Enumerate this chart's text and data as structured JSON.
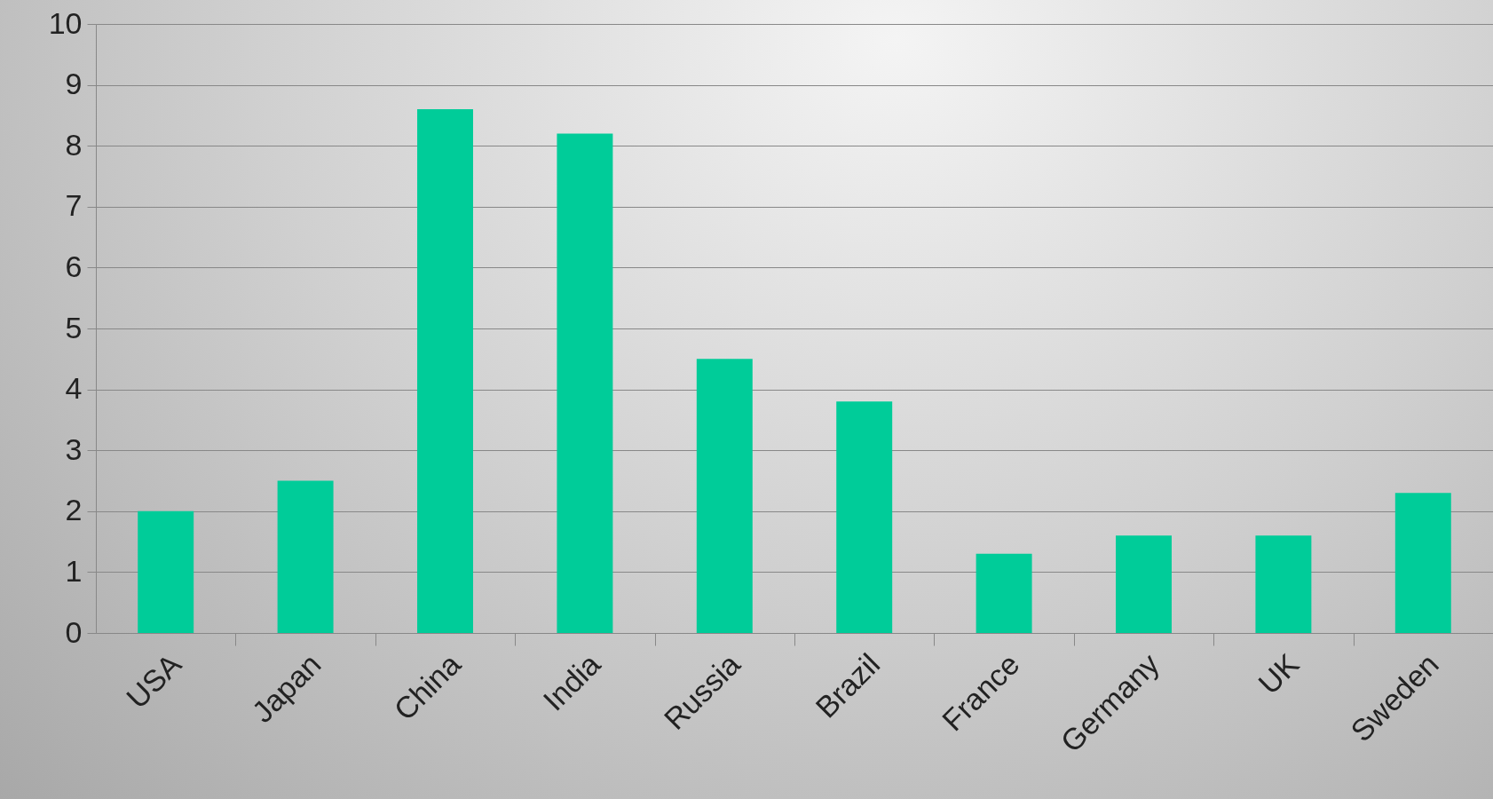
{
  "chart_data": {
    "type": "bar",
    "categories": [
      "USA",
      "Japan",
      "China",
      "India",
      "Russia",
      "Brazil",
      "France",
      "Germany",
      "UK",
      "Sweden"
    ],
    "values": [
      2.0,
      2.5,
      8.6,
      8.2,
      4.5,
      3.8,
      1.3,
      1.6,
      1.6,
      2.3
    ],
    "color": "#00cc99",
    "ylim": [
      0,
      10
    ],
    "yticks": [
      0,
      1,
      2,
      3,
      4,
      5,
      6,
      7,
      8,
      9,
      10
    ],
    "grid": "y"
  }
}
